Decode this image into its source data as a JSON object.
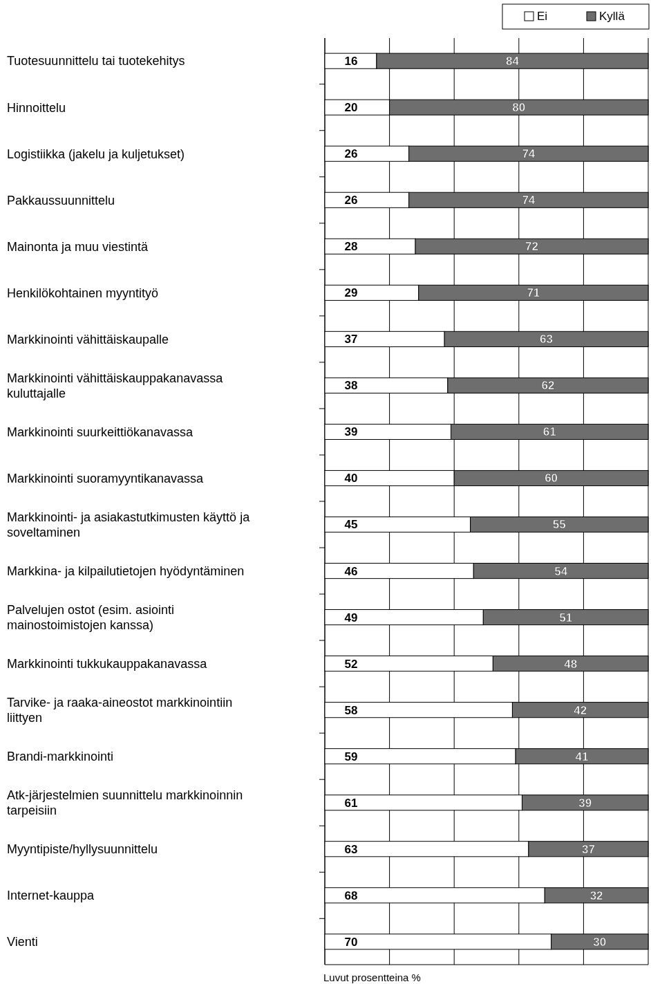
{
  "chart_data": {
    "type": "bar",
    "orientation": "horizontal",
    "stacked": true,
    "categories": [
      "Tuotesuunnittelu tai tuotekehitys",
      "Hinnoittelu",
      "Logistiikka (jakelu ja kuljetukset)",
      "Pakkaussuunnittelu",
      "Mainonta ja muu viestintä",
      "Henkilökohtainen myyntityö",
      "Markkinointi vähittäiskaupalle",
      "Markkinointi vähittäiskauppakanavassa kuluttajalle",
      "Markkinointi suurkeittiökanavassa",
      "Markkinointi suoramyyntikanavassa",
      "Markkinointi- ja asiakastutkimusten käyttö ja soveltaminen",
      "Markkina- ja kilpailutietojen hyödyntäminen",
      "Palvelujen ostot (esim. asiointi mainostoimistojen kanssa)",
      "Markkinointi tukkukauppakanavassa",
      "Tarvike- ja raaka-aineostot markkinointiin liittyen",
      "Brandi-markkinointi",
      "Atk-järjestelmien suunnittelu markkinoinnin tarpeisiin",
      "Myyntipiste/hyllysuunnittelu",
      "Internet-kauppa",
      "Vienti"
    ],
    "series": [
      {
        "name": "Ei",
        "color": "#ffffff",
        "values": [
          16,
          20,
          26,
          26,
          28,
          29,
          37,
          38,
          39,
          40,
          45,
          46,
          49,
          52,
          58,
          59,
          61,
          63,
          68,
          70
        ]
      },
      {
        "name": "Kyllä",
        "color": "#6e6e6e",
        "values": [
          84,
          80,
          74,
          74,
          72,
          71,
          63,
          62,
          61,
          60,
          55,
          54,
          51,
          48,
          42,
          41,
          39,
          37,
          32,
          30
        ]
      }
    ],
    "xlim": [
      0,
      100
    ],
    "xticks": [
      {
        "value": 0,
        "label": null
      },
      {
        "value": 20,
        "label": null
      },
      {
        "value": 40,
        "label": null
      },
      {
        "value": 60,
        "label": null
      },
      {
        "value": 80,
        "label": null
      },
      {
        "value": 100,
        "label": null
      }
    ],
    "tick_labels": "y",
    "grid": "x",
    "legend": "top right",
    "data_labels": true,
    "annotations": [
      "Luvut prosentteina %"
    ]
  }
}
